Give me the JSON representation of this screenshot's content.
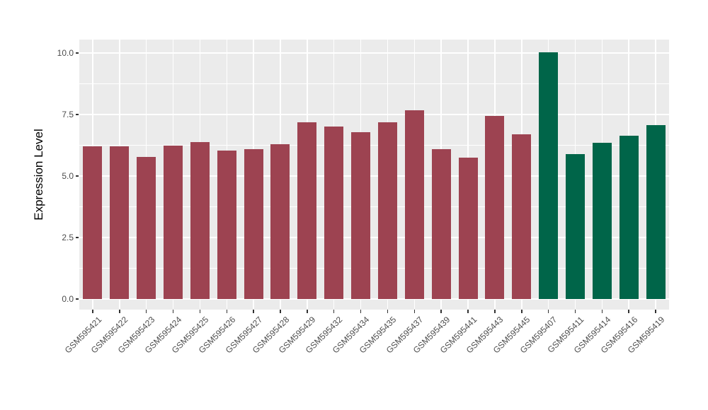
{
  "figure": {
    "background": "#FFFFFF",
    "panel_background": "#EBEBEB",
    "gridline_color": "#FFFFFF",
    "axis_text_color": "#4D4D4D",
    "axis_title_color": "#000000",
    "tick_mark_color": "#333333"
  },
  "chart_data": {
    "type": "bar",
    "title": "",
    "xlabel": "",
    "ylabel": "Expression Level",
    "ylim": [
      0,
      10.5
    ],
    "yticks": [
      0,
      2.5,
      5,
      7.5,
      10
    ],
    "ytick_labels": [
      "0.0",
      "2.5",
      "5.0",
      "7.5",
      "10.0"
    ],
    "yticks_minor": [
      1.25,
      3.75,
      6.25,
      8.75
    ],
    "grid": "white major and minor gridlines on grey panel, vertical majors at category centers",
    "legend": "none",
    "x_label_rotation_deg": 45,
    "categories": [
      "GSM595421",
      "GSM595422",
      "GSM595423",
      "GSM595424",
      "GSM595425",
      "GSM595426",
      "GSM595427",
      "GSM595428",
      "GSM595429",
      "GSM595432",
      "GSM595434",
      "GSM595435",
      "GSM595437",
      "GSM595439",
      "GSM595441",
      "GSM595443",
      "GSM595445",
      "GSM595407",
      "GSM595411",
      "GSM595414",
      "GSM595416",
      "GSM595419"
    ],
    "values": [
      6.2,
      6.2,
      5.78,
      6.24,
      6.39,
      6.04,
      6.08,
      6.29,
      7.18,
      7.01,
      6.78,
      7.18,
      7.67,
      6.09,
      5.75,
      7.44,
      6.7,
      10.04,
      5.9,
      6.36,
      6.64,
      7.07
    ],
    "bar_color_default": "#9D4351",
    "bar_color_highlight": "#006549",
    "highlight_categories": [
      "GSM595407",
      "GSM595411",
      "GSM595414",
      "GSM595416",
      "GSM595419"
    ]
  }
}
